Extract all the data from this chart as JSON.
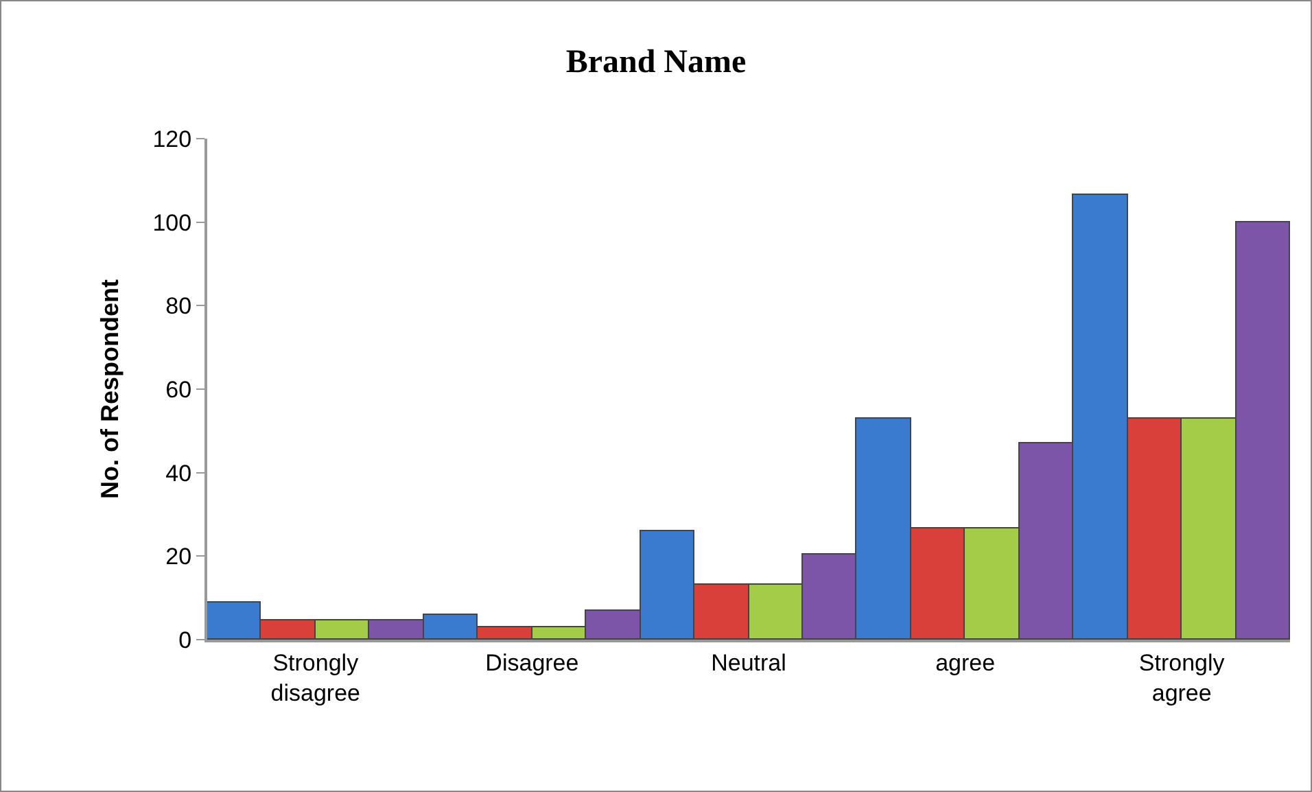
{
  "chart_data": {
    "type": "bar",
    "title": "Brand Name",
    "ylabel": "No. of Respondent",
    "categories": [
      "Strongly disagree",
      "Disagree",
      "Neutral",
      "agree",
      "Strongly agree"
    ],
    "series": [
      {
        "color": "#3a7bd0",
        "values": [
          9,
          6,
          26,
          53,
          106.5
        ]
      },
      {
        "color": "#d9403a",
        "values": [
          4.5,
          3,
          13,
          26.5,
          53
        ]
      },
      {
        "color": "#a4cc48",
        "values": [
          4.5,
          3,
          13,
          26.5,
          53
        ]
      },
      {
        "color": "#7c55a8",
        "values": [
          4.5,
          7,
          20.5,
          47,
          100
        ]
      }
    ],
    "ylim": [
      0,
      120
    ],
    "yticks": [
      0,
      20,
      40,
      60,
      80,
      100,
      120
    ]
  }
}
